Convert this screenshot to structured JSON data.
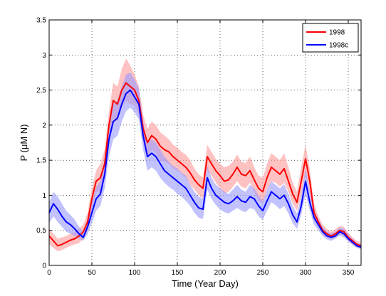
{
  "chart_data": {
    "type": "line",
    "title": "",
    "xlabel": "Time (Year Day)",
    "ylabel": "P (μM N)",
    "xlim": [
      0,
      365
    ],
    "ylim": [
      0,
      3.5
    ],
    "xticks": [
      0,
      50,
      100,
      150,
      200,
      250,
      300,
      350
    ],
    "yticks": [
      0,
      0.5,
      1,
      1.5,
      2,
      2.5,
      3,
      3.5
    ],
    "xtick_labels": [
      "0",
      "50",
      "100",
      "150",
      "200",
      "250",
      "300",
      "350"
    ],
    "ytick_labels": [
      "0",
      "0.5",
      "1",
      "1.5",
      "2",
      "2.5",
      "3",
      "3.5"
    ],
    "grid": true,
    "legend_position": "top-right",
    "x": [
      0,
      5,
      10,
      15,
      20,
      25,
      30,
      35,
      40,
      45,
      50,
      55,
      60,
      65,
      70,
      75,
      80,
      85,
      90,
      95,
      100,
      105,
      110,
      115,
      120,
      125,
      130,
      135,
      140,
      145,
      150,
      155,
      160,
      165,
      170,
      175,
      180,
      185,
      190,
      195,
      200,
      205,
      210,
      215,
      220,
      225,
      230,
      235,
      240,
      245,
      250,
      255,
      260,
      265,
      270,
      275,
      280,
      285,
      290,
      295,
      300,
      305,
      310,
      315,
      320,
      325,
      330,
      335,
      340,
      345,
      350,
      355,
      360,
      365
    ],
    "series": [
      {
        "name": "1998",
        "color": "#ff0000",
        "band_color": "#ff9a9a",
        "values": [
          0.42,
          0.35,
          0.28,
          0.3,
          0.33,
          0.36,
          0.38,
          0.42,
          0.48,
          0.62,
          0.95,
          1.2,
          1.25,
          1.45,
          2.0,
          2.35,
          2.3,
          2.5,
          2.6,
          2.55,
          2.5,
          2.35,
          1.95,
          1.75,
          1.85,
          1.8,
          1.7,
          1.65,
          1.62,
          1.55,
          1.5,
          1.45,
          1.4,
          1.32,
          1.22,
          1.15,
          1.1,
          1.55,
          1.45,
          1.35,
          1.28,
          1.2,
          1.22,
          1.3,
          1.4,
          1.3,
          1.28,
          1.35,
          1.22,
          1.1,
          1.05,
          1.25,
          1.4,
          1.35,
          1.3,
          1.38,
          1.2,
          1.02,
          0.9,
          1.2,
          1.52,
          1.2,
          0.75,
          0.62,
          0.5,
          0.45,
          0.42,
          0.45,
          0.5,
          0.48,
          0.4,
          0.35,
          0.3,
          0.28
        ],
        "lower": [
          0.3,
          0.25,
          0.2,
          0.22,
          0.25,
          0.28,
          0.3,
          0.32,
          0.38,
          0.5,
          0.8,
          1.05,
          1.05,
          1.25,
          1.8,
          2.1,
          2.05,
          2.25,
          2.35,
          2.3,
          2.28,
          2.15,
          1.75,
          1.55,
          1.65,
          1.6,
          1.5,
          1.48,
          1.45,
          1.38,
          1.35,
          1.3,
          1.25,
          1.15,
          1.08,
          1.0,
          0.95,
          1.35,
          1.28,
          1.18,
          1.1,
          1.02,
          1.05,
          1.12,
          1.2,
          1.12,
          1.1,
          1.18,
          1.05,
          0.92,
          0.88,
          1.08,
          1.2,
          1.18,
          1.12,
          1.18,
          1.05,
          0.88,
          0.78,
          1.0,
          1.3,
          1.05,
          0.65,
          0.55,
          0.44,
          0.4,
          0.38,
          0.4,
          0.44,
          0.42,
          0.35,
          0.3,
          0.26,
          0.25
        ],
        "upper": [
          0.52,
          0.45,
          0.38,
          0.4,
          0.42,
          0.45,
          0.48,
          0.52,
          0.58,
          0.75,
          1.1,
          1.35,
          1.45,
          1.65,
          2.2,
          2.6,
          2.55,
          2.8,
          2.95,
          2.85,
          2.72,
          2.55,
          2.15,
          1.95,
          2.05,
          2.0,
          1.9,
          1.85,
          1.8,
          1.72,
          1.68,
          1.62,
          1.58,
          1.5,
          1.38,
          1.3,
          1.25,
          1.72,
          1.62,
          1.52,
          1.45,
          1.4,
          1.42,
          1.48,
          1.58,
          1.48,
          1.46,
          1.55,
          1.4,
          1.28,
          1.25,
          1.45,
          1.6,
          1.55,
          1.5,
          1.6,
          1.4,
          1.18,
          1.05,
          1.4,
          1.72,
          1.38,
          0.88,
          0.7,
          0.58,
          0.52,
          0.48,
          0.52,
          0.56,
          0.55,
          0.46,
          0.4,
          0.35,
          0.32
        ]
      },
      {
        "name": "1998c",
        "color": "#0000ff",
        "band_color": "#9a9aff",
        "values": [
          0.75,
          0.88,
          0.8,
          0.7,
          0.62,
          0.58,
          0.52,
          0.45,
          0.4,
          0.55,
          0.75,
          0.95,
          1.02,
          1.3,
          1.8,
          2.05,
          2.1,
          2.3,
          2.45,
          2.5,
          2.4,
          2.3,
          1.85,
          1.55,
          1.6,
          1.55,
          1.45,
          1.35,
          1.3,
          1.25,
          1.2,
          1.15,
          1.1,
          1.0,
          0.9,
          0.82,
          0.8,
          1.25,
          1.1,
          1.0,
          0.95,
          0.9,
          0.88,
          0.92,
          0.98,
          0.92,
          0.9,
          0.98,
          0.95,
          0.85,
          0.78,
          0.92,
          1.05,
          1.0,
          0.95,
          1.0,
          0.88,
          0.72,
          0.62,
          0.85,
          1.2,
          0.9,
          0.68,
          0.58,
          0.48,
          0.42,
          0.4,
          0.42,
          0.48,
          0.45,
          0.38,
          0.33,
          0.28,
          0.26
        ],
        "lower": [
          0.6,
          0.7,
          0.62,
          0.55,
          0.48,
          0.45,
          0.42,
          0.38,
          0.35,
          0.45,
          0.6,
          0.78,
          0.85,
          1.1,
          1.55,
          1.8,
          1.85,
          2.05,
          2.2,
          2.25,
          2.18,
          2.08,
          1.65,
          1.35,
          1.4,
          1.35,
          1.25,
          1.18,
          1.12,
          1.08,
          1.02,
          0.98,
          0.92,
          0.85,
          0.75,
          0.68,
          0.66,
          1.08,
          0.95,
          0.86,
          0.8,
          0.76,
          0.74,
          0.78,
          0.82,
          0.78,
          0.76,
          0.82,
          0.8,
          0.7,
          0.65,
          0.78,
          0.9,
          0.86,
          0.8,
          0.85,
          0.74,
          0.6,
          0.52,
          0.72,
          1.02,
          0.78,
          0.58,
          0.5,
          0.42,
          0.37,
          0.35,
          0.38,
          0.43,
          0.4,
          0.34,
          0.29,
          0.25,
          0.23
        ],
        "upper": [
          0.9,
          1.05,
          0.98,
          0.88,
          0.78,
          0.72,
          0.65,
          0.55,
          0.48,
          0.65,
          0.9,
          1.12,
          1.2,
          1.5,
          2.05,
          2.3,
          2.35,
          2.55,
          2.72,
          2.75,
          2.65,
          2.52,
          2.05,
          1.75,
          1.8,
          1.75,
          1.65,
          1.55,
          1.48,
          1.42,
          1.38,
          1.32,
          1.28,
          1.15,
          1.05,
          0.98,
          0.95,
          1.42,
          1.25,
          1.15,
          1.1,
          1.05,
          1.02,
          1.08,
          1.15,
          1.08,
          1.05,
          1.15,
          1.1,
          1.0,
          0.92,
          1.08,
          1.2,
          1.15,
          1.1,
          1.16,
          1.02,
          0.85,
          0.74,
          1.0,
          1.38,
          1.05,
          0.78,
          0.66,
          0.55,
          0.48,
          0.46,
          0.48,
          0.54,
          0.52,
          0.44,
          0.38,
          0.32,
          0.3
        ]
      }
    ]
  }
}
